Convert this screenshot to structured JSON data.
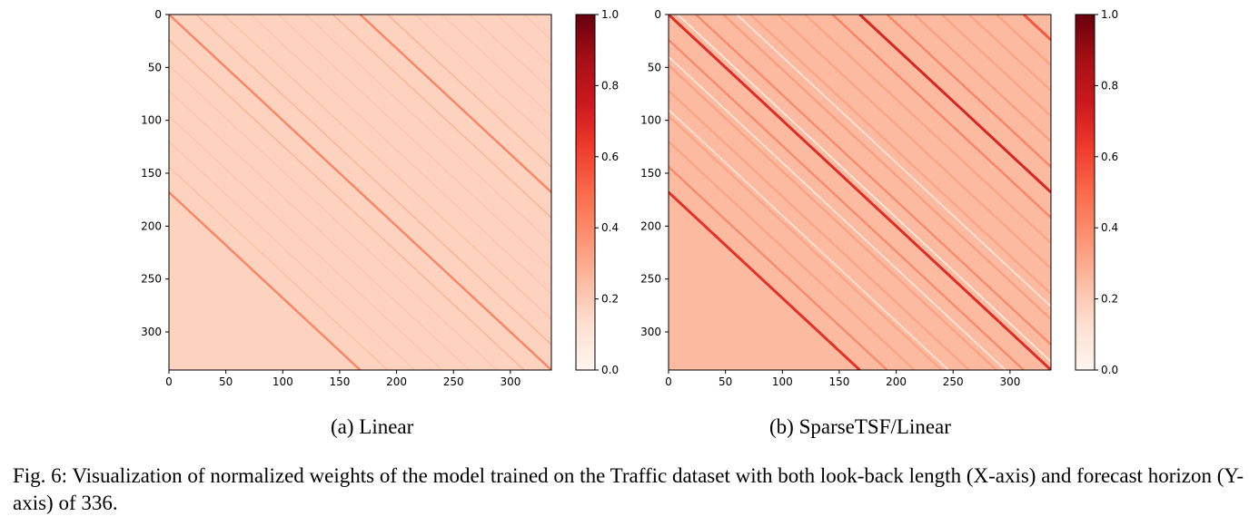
{
  "chart_data": [
    {
      "type": "heatmap",
      "subcaption": "(a) Linear",
      "x_ticks": [
        0,
        50,
        100,
        150,
        200,
        250,
        300
      ],
      "y_ticks": [
        0,
        50,
        100,
        150,
        200,
        250,
        300
      ],
      "xlim": [
        0,
        336
      ],
      "ylim": [
        336,
        0
      ],
      "size": 336,
      "background_value": 0.17,
      "bands": [
        {
          "offset": 0,
          "value": 0.42
        },
        {
          "offset": 168,
          "value": 0.42
        },
        {
          "offset": -168,
          "value": 0.42
        },
        {
          "offset": 24,
          "value": 0.27
        },
        {
          "offset": -24,
          "value": 0.27
        },
        {
          "offset": 48,
          "value": 0.23
        },
        {
          "offset": 144,
          "value": 0.27
        },
        {
          "offset": 192,
          "value": 0.27
        },
        {
          "offset": -144,
          "value": 0.23
        },
        {
          "offset": 72,
          "value": 0.21
        },
        {
          "offset": 96,
          "value": 0.21
        },
        {
          "offset": 120,
          "value": 0.21
        },
        {
          "offset": -48,
          "value": 0.21
        },
        {
          "offset": -72,
          "value": 0.21
        },
        {
          "offset": -96,
          "value": 0.21
        },
        {
          "offset": -120,
          "value": 0.21
        },
        {
          "offset": 216,
          "value": 0.21
        },
        {
          "offset": 240,
          "value": 0.21
        },
        {
          "offset": 264,
          "value": 0.21
        },
        {
          "offset": 288,
          "value": 0.21
        },
        {
          "offset": 312,
          "value": 0.21
        }
      ],
      "colorbar": {
        "min": 0.0,
        "max": 1.0,
        "ticks": [
          "0.0",
          "0.2",
          "0.4",
          "0.6",
          "0.8",
          "1.0"
        ]
      }
    },
    {
      "type": "heatmap",
      "subcaption": "(b) SparseTSF/Linear",
      "x_ticks": [
        0,
        50,
        100,
        150,
        200,
        250,
        300
      ],
      "y_ticks": [
        0,
        50,
        100,
        150,
        200,
        250,
        300
      ],
      "xlim": [
        0,
        336
      ],
      "ylim": [
        336,
        0
      ],
      "size": 336,
      "background_value": 0.25,
      "bands": [
        {
          "offset": 0,
          "value": 0.68
        },
        {
          "offset": 168,
          "value": 0.7
        },
        {
          "offset": -168,
          "value": 0.66
        },
        {
          "offset": 24,
          "value": 0.4
        },
        {
          "offset": -24,
          "value": 0.4
        },
        {
          "offset": 144,
          "value": 0.42
        },
        {
          "offset": 192,
          "value": 0.42
        },
        {
          "offset": -144,
          "value": 0.4
        },
        {
          "offset": 312,
          "value": 0.55
        },
        {
          "offset": 48,
          "value": 0.34
        },
        {
          "offset": 72,
          "value": 0.32
        },
        {
          "offset": 96,
          "value": 0.32
        },
        {
          "offset": 120,
          "value": 0.32
        },
        {
          "offset": -48,
          "value": 0.33
        },
        {
          "offset": -72,
          "value": 0.32
        },
        {
          "offset": -96,
          "value": 0.32
        },
        {
          "offset": -120,
          "value": 0.32
        },
        {
          "offset": 216,
          "value": 0.34
        },
        {
          "offset": 240,
          "value": 0.32
        },
        {
          "offset": 264,
          "value": 0.32
        },
        {
          "offset": 288,
          "value": 0.33
        },
        {
          "offset": 8,
          "value": 0.05
        },
        {
          "offset": 60,
          "value": 0.08
        },
        {
          "offset": -40,
          "value": 0.08
        },
        {
          "offset": -90,
          "value": 0.1
        }
      ],
      "colorbar": {
        "min": 0.0,
        "max": 1.0,
        "ticks": [
          "0.0",
          "0.2",
          "0.4",
          "0.6",
          "0.8",
          "1.0"
        ]
      }
    }
  ],
  "caption": "Fig. 6: Visualization of normalized weights of the model trained on the Traffic dataset with both look-back length (X-axis) and forecast horizon (Y-axis) of 336."
}
